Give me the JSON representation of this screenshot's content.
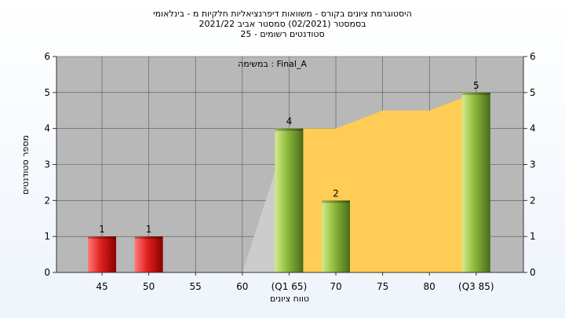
{
  "colors": {
    "plot_bg": "#b8b8b8",
    "grid": "#555555",
    "area_fill": "#ffcc55",
    "ghost_fill": "#cccccc",
    "bar_red": "#e02020",
    "bar_green": "#8ab83a"
  },
  "chart_data": {
    "type": "bar",
    "title_lines": [
      "היסטוגרמת ציונים בקורס - משוואות דיפרנציאליות חלקיות מ - בינלאומי",
      "בסמסטר   (02/2021)  סמסטר אביב 2021/22",
      "סטודנטים רשומים - 25"
    ],
    "annotation": "במשימה : Final_A",
    "xlabel": "טווח ציונים",
    "ylabel": "מספר סטודנטים",
    "categories": [
      "45",
      "50",
      "55",
      "60",
      "(Q1 65)",
      "70",
      "75",
      "80",
      "(Q3 85)"
    ],
    "values": [
      1,
      1,
      0,
      0,
      4,
      2,
      0,
      0,
      5
    ],
    "bar_colors": [
      "red",
      "red",
      "",
      "",
      "green",
      "green",
      "",
      "",
      "green"
    ],
    "value_labels": [
      "1",
      "1",
      "",
      "",
      "4",
      "2",
      "",
      "",
      "5"
    ],
    "distribution_area": {
      "x": [
        "60",
        "(Q1 65)",
        "70",
        "75",
        "80",
        "(Q3 85)"
      ],
      "y": [
        0,
        4,
        4,
        4.5,
        4.5,
        5
      ]
    },
    "y_ticks": [
      "0",
      "1",
      "2",
      "3",
      "4",
      "5",
      "6"
    ],
    "ylim": [
      0,
      6
    ],
    "grid": true
  }
}
